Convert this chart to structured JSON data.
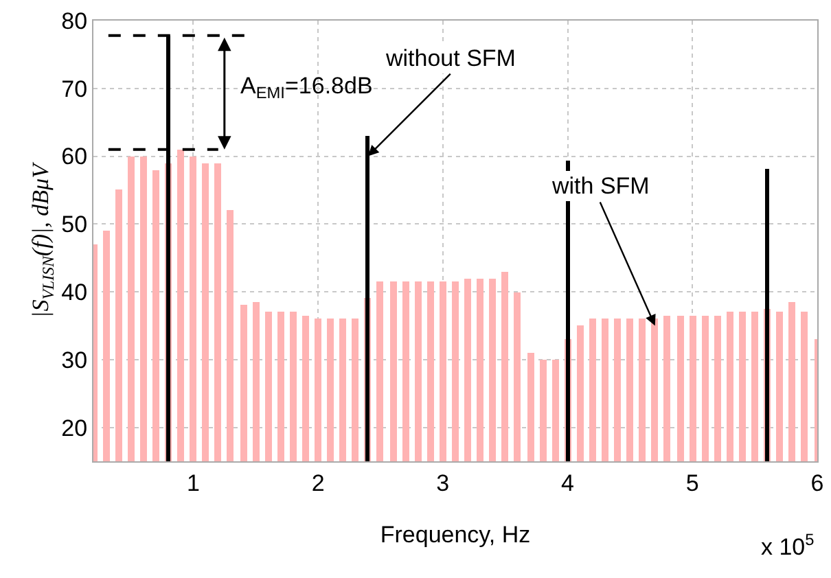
{
  "chart_data": {
    "type": "bar",
    "xlabel": "Frequency, Hz",
    "ylabel": "|S$_{VLISN}$(f)|, dBμV",
    "xlim": [
      0.2,
      6
    ],
    "xticks": [
      1,
      2,
      3,
      4,
      5,
      6
    ],
    "ylim": [
      15,
      80
    ],
    "yticks": [
      20,
      30,
      40,
      50,
      60,
      70,
      80
    ],
    "grid": true,
    "series": [
      {
        "color": "#ffb3b3",
        "x": [
          0.2,
          0.3,
          0.4,
          0.5,
          0.6,
          0.7,
          0.8,
          0.9,
          1.0,
          1.1,
          1.2,
          1.3,
          1.4,
          1.5,
          1.6,
          1.7,
          1.8,
          1.9,
          2.0,
          2.1,
          2.2,
          2.3,
          2.4,
          2.5,
          2.6,
          2.7,
          2.8,
          2.9,
          3.0,
          3.1,
          3.2,
          3.3,
          3.4,
          3.5,
          3.6,
          3.7,
          3.8,
          3.9,
          4.0,
          4.1,
          4.2,
          4.3,
          4.4,
          4.5,
          4.6,
          4.7,
          4.8,
          4.9,
          5.0,
          5.1,
          5.2,
          5.3,
          5.4,
          5.5,
          5.6,
          5.7,
          5.8,
          5.9,
          6.0
        ],
        "values": [
          47,
          49,
          55,
          60,
          60,
          58,
          59,
          61,
          60,
          59,
          59,
          52,
          38,
          38.5,
          37,
          37,
          37,
          36.5,
          36,
          36,
          36,
          36,
          39,
          41.5,
          41.5,
          41.5,
          41.5,
          41.5,
          41.5,
          41.5,
          42,
          42,
          42,
          43,
          40,
          31,
          30,
          30,
          33,
          35,
          36,
          36,
          36,
          36,
          36,
          36,
          36.5,
          36.5,
          36.5,
          36.5,
          36.5,
          37,
          37,
          37,
          37.5,
          37,
          38.5,
          37,
          33
        ]
      },
      {
        "color": "#000000",
        "x": [
          0.8,
          2.4,
          4.0,
          5.6
        ],
        "values": [
          77.8,
          63,
          59.3,
          58.1
        ]
      }
    ],
    "ref_lines": [
      {
        "axis": "y",
        "value": 77.8,
        "color": "#000000",
        "line_style": "dashed"
      },
      {
        "axis": "y",
        "value": 61,
        "color": "#000000",
        "line_style": "dashed"
      }
    ],
    "annotations": [
      "A$_{EMI}$=16.8dB",
      "x 10$^{5}$",
      {
        "text": "without SFM",
        "x": 2.4,
        "y": 60
      },
      {
        "text": "with SFM",
        "x": 4.7,
        "y": 35
      }
    ]
  }
}
